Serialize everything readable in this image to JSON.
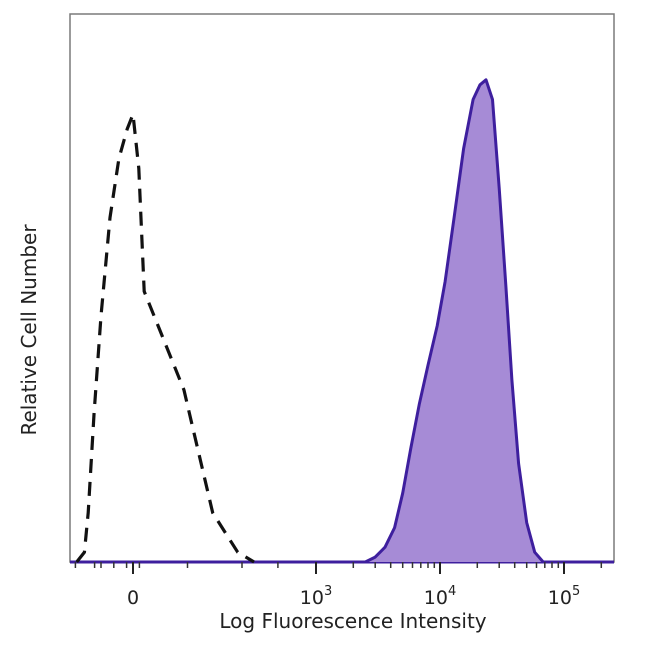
{
  "chart_data": {
    "type": "area",
    "title": "",
    "xlabel": "Log Fluorescence Intensity",
    "ylabel": "Relative Cell Number",
    "x_scale": "biexponential",
    "xlim": [
      -1000,
      200000
    ],
    "ylim": [
      0,
      1.0
    ],
    "x_ticks": [
      {
        "label": "0",
        "value": 0
      },
      {
        "label": "10",
        "exp": "3",
        "value": 1000
      },
      {
        "label": "10",
        "exp": "4",
        "value": 10000
      },
      {
        "label": "10",
        "exp": "5",
        "value": 100000
      }
    ],
    "series": [
      {
        "style": "dashed",
        "fill": "none",
        "stroke": "#111111",
        "points": [
          [
            -880,
            0.0
          ],
          [
            -760,
            0.02
          ],
          [
            -700,
            0.1
          ],
          [
            -610,
            0.3
          ],
          [
            -500,
            0.5
          ],
          [
            -360,
            0.7
          ],
          [
            -220,
            0.82
          ],
          [
            -90,
            0.88
          ],
          [
            0,
            0.91
          ],
          [
            90,
            0.8
          ],
          [
            200,
            0.55
          ],
          [
            290,
            0.35
          ],
          [
            380,
            0.1
          ],
          [
            480,
            0.02
          ],
          [
            560,
            0.0
          ]
        ]
      },
      {
        "style": "solid",
        "fill": "#a68bd6",
        "stroke": "#3e1f9e",
        "points": [
          [
            2500,
            0.0
          ],
          [
            3000,
            0.01
          ],
          [
            3600,
            0.03
          ],
          [
            4300,
            0.07
          ],
          [
            5000,
            0.14
          ],
          [
            5800,
            0.23
          ],
          [
            6800,
            0.32
          ],
          [
            8000,
            0.4
          ],
          [
            9500,
            0.48
          ],
          [
            11000,
            0.57
          ],
          [
            13000,
            0.7
          ],
          [
            15500,
            0.84
          ],
          [
            18500,
            0.94
          ],
          [
            21000,
            0.97
          ],
          [
            23500,
            0.98
          ],
          [
            26500,
            0.94
          ],
          [
            30000,
            0.76
          ],
          [
            34000,
            0.56
          ],
          [
            38000,
            0.37
          ],
          [
            43000,
            0.2
          ],
          [
            50000,
            0.08
          ],
          [
            58000,
            0.02
          ],
          [
            68000,
            0.0
          ]
        ]
      }
    ]
  }
}
